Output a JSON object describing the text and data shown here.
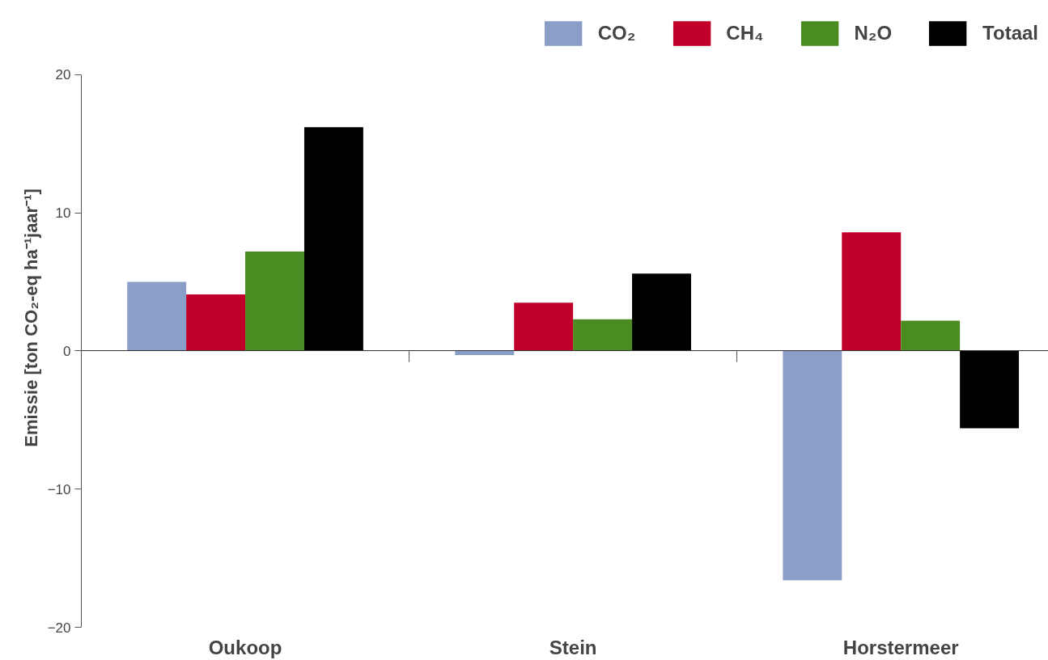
{
  "chart_data": {
    "type": "bar",
    "ylabel": "Emissie [ton CO₂-eq ha⁻¹jaar⁻¹]",
    "categories": [
      "Oukoop",
      "Stein",
      "Horstermeer"
    ],
    "series": [
      {
        "name": "CO₂",
        "color": "#8b9ec8",
        "values": [
          5.0,
          -0.3,
          -16.6
        ]
      },
      {
        "name": "CH₄",
        "color": "#c0002a",
        "values": [
          4.1,
          3.5,
          8.6
        ]
      },
      {
        "name": "N₂O",
        "color": "#4a8c22",
        "values": [
          7.2,
          2.3,
          2.2
        ]
      },
      {
        "name": "Totaal",
        "color": "#000000",
        "values": [
          16.2,
          5.6,
          -5.6
        ]
      }
    ],
    "ylim": [
      -20,
      20
    ],
    "yticks": [
      -20,
      -10,
      0,
      10,
      20
    ],
    "legend": "top"
  }
}
